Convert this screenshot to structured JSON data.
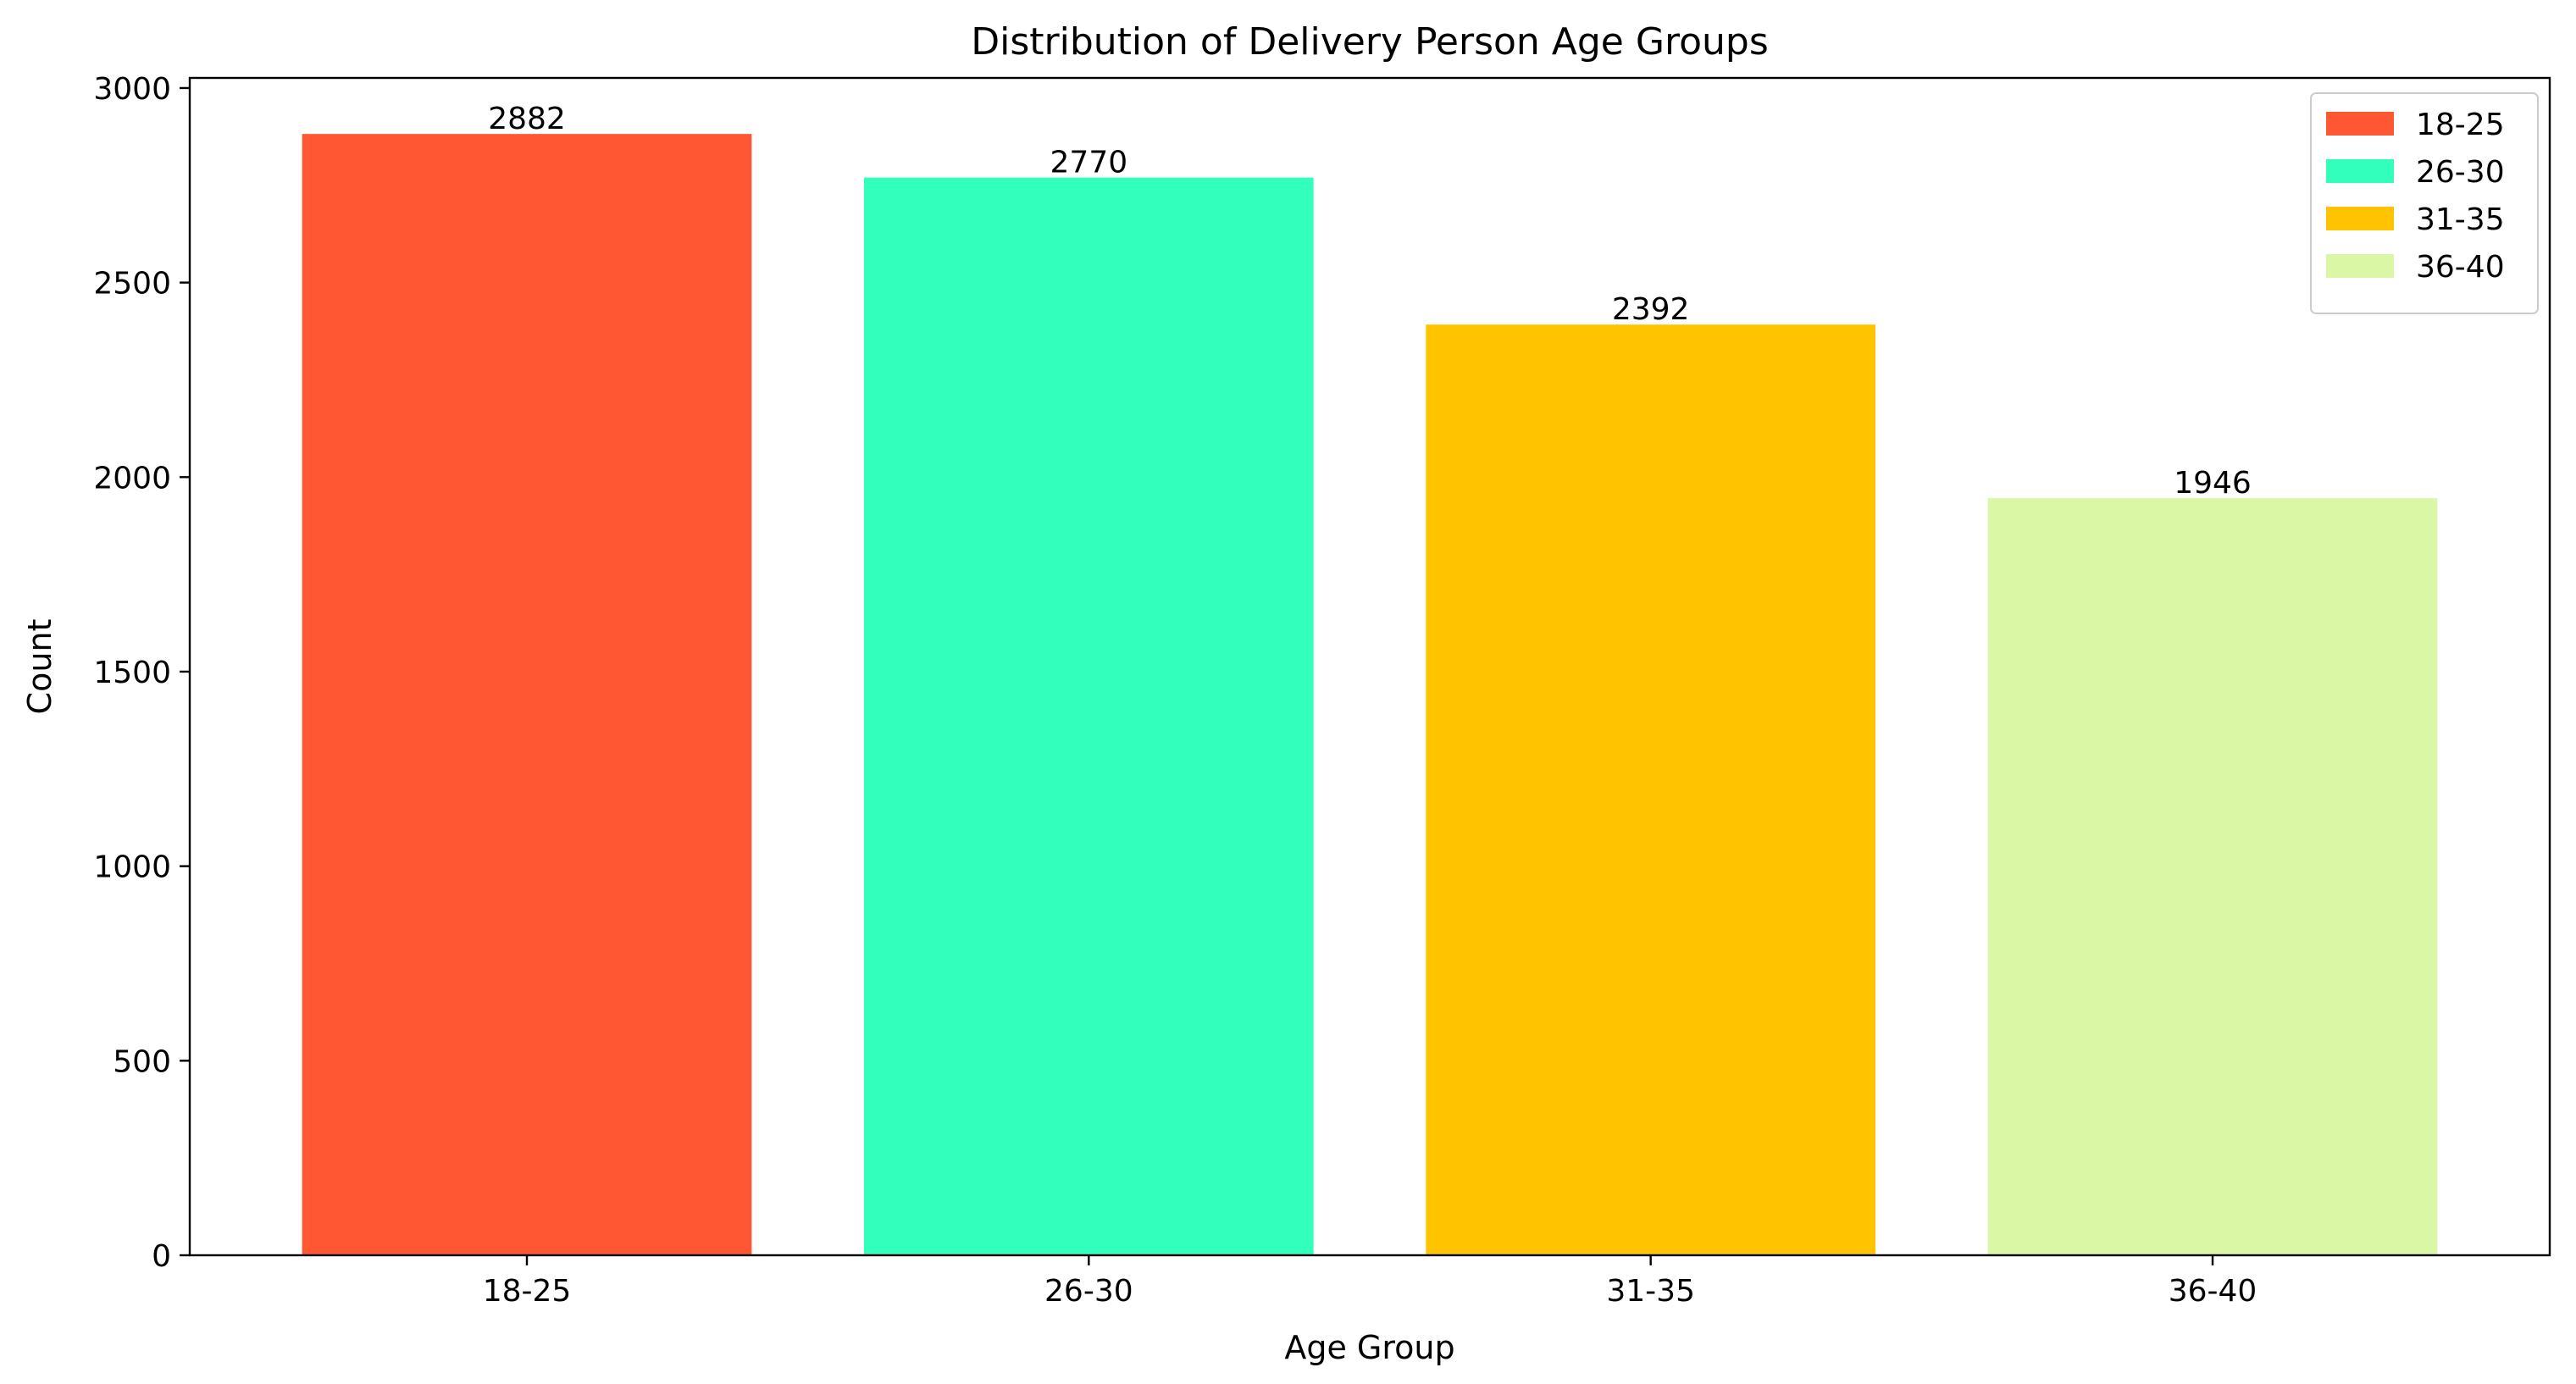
{
  "chart_data": {
    "type": "bar",
    "title": "Distribution of Delivery Person Age Groups",
    "xlabel": "Age Group",
    "ylabel": "Count",
    "categories": [
      "18-25",
      "26-30",
      "31-35",
      "36-40"
    ],
    "values": [
      2882,
      2770,
      2392,
      1946
    ],
    "bar_labels": [
      "2882",
      "2770",
      "2392",
      "1946"
    ],
    "colors": [
      "#FF5733",
      "#33FFBD",
      "#FFC300",
      "#DAF7A6"
    ],
    "ylim": [
      0,
      3026
    ],
    "yticks": [
      0,
      500,
      1000,
      1500,
      2000,
      2500,
      3000
    ],
    "ytick_labels": [
      "0",
      "500",
      "1000",
      "1500",
      "2000",
      "2500",
      "3000"
    ],
    "grid": false,
    "legend": {
      "position": "top-right",
      "entries": [
        "18-25",
        "26-30",
        "31-35",
        "36-40"
      ]
    }
  }
}
